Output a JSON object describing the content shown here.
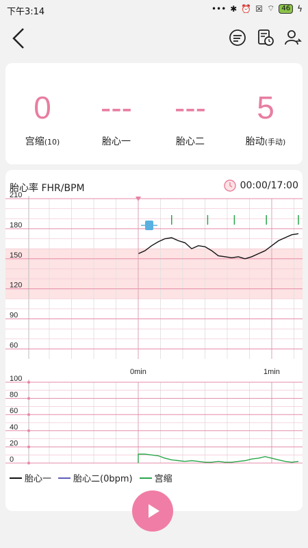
{
  "status_bar": {
    "time": "下午3:14",
    "battery": "46"
  },
  "stats": [
    {
      "value": "0",
      "label": "宫缩",
      "sub": "(10)"
    },
    {
      "value": "---",
      "label": "胎心一",
      "sub": ""
    },
    {
      "value": "---",
      "label": "胎心二",
      "sub": ""
    },
    {
      "value": "5",
      "label": "胎动",
      "sub": "(手动)"
    }
  ],
  "chart": {
    "title": "胎心率 FHR/BPM",
    "timer": "00:00/17:00",
    "fhr_ticks": [
      "210",
      "180",
      "150",
      "120",
      "90",
      "60"
    ],
    "time_ticks": [
      "0min",
      "1min"
    ],
    "uc_ticks": [
      "100",
      "80",
      "60",
      "40",
      "20",
      "0"
    ],
    "legend": [
      "胎心一",
      "胎心二(0bpm)",
      "宫缩"
    ]
  },
  "colors": {
    "accent": "#e87ea1",
    "normal_band": "#fde3e3",
    "fhr1": "#111111",
    "fhr2": "#5c5cb8",
    "uc": "#2aa64a",
    "play": "#f07da5"
  },
  "chart_data": [
    {
      "type": "line",
      "title": "胎心率 FHR/BPM",
      "xlabel": "",
      "ylabel": "",
      "x_unit": "min",
      "ylim": [
        50,
        210
      ],
      "y_ticks": [
        210,
        180,
        150,
        120,
        90,
        60
      ],
      "normal_range": [
        110,
        160
      ],
      "series": [
        {
          "name": "胎心一",
          "x": [
            0,
            0.05,
            0.1,
            0.15,
            0.2,
            0.25,
            0.3,
            0.35,
            0.4,
            0.45,
            0.5,
            0.55,
            0.6,
            0.65,
            0.7,
            0.75,
            0.8,
            0.85,
            0.9,
            0.95,
            1.0,
            1.05,
            1.1,
            1.15,
            1.2
          ],
          "y": [
            155,
            158,
            163,
            167,
            170,
            171,
            168,
            166,
            160,
            163,
            162,
            158,
            153,
            152,
            151,
            152,
            150,
            152,
            155,
            158,
            163,
            168,
            171,
            174,
            175
          ]
        }
      ]
    },
    {
      "type": "line",
      "title": "",
      "xlabel": "",
      "ylabel": "",
      "x_unit": "min",
      "ylim": [
        0,
        100
      ],
      "y_ticks": [
        100,
        80,
        60,
        40,
        20,
        0
      ],
      "series": [
        {
          "name": "宫缩",
          "x": [
            0,
            0.05,
            0.1,
            0.15,
            0.2,
            0.25,
            0.3,
            0.35,
            0.4,
            0.45,
            0.5,
            0.55,
            0.6,
            0.65,
            0.7,
            0.75,
            0.8,
            0.85,
            0.9,
            0.95,
            1.0,
            1.05,
            1.1,
            1.15,
            1.2
          ],
          "y": [
            11,
            11,
            10,
            9,
            6,
            4,
            3,
            2,
            3,
            2,
            1,
            1,
            2,
            1,
            1,
            2,
            3,
            5,
            6,
            8,
            6,
            4,
            2,
            1,
            2
          ]
        }
      ],
      "fetal_movement_marks_min": [
        0.25,
        0.52,
        0.72,
        0.96,
        1.2
      ]
    }
  ]
}
